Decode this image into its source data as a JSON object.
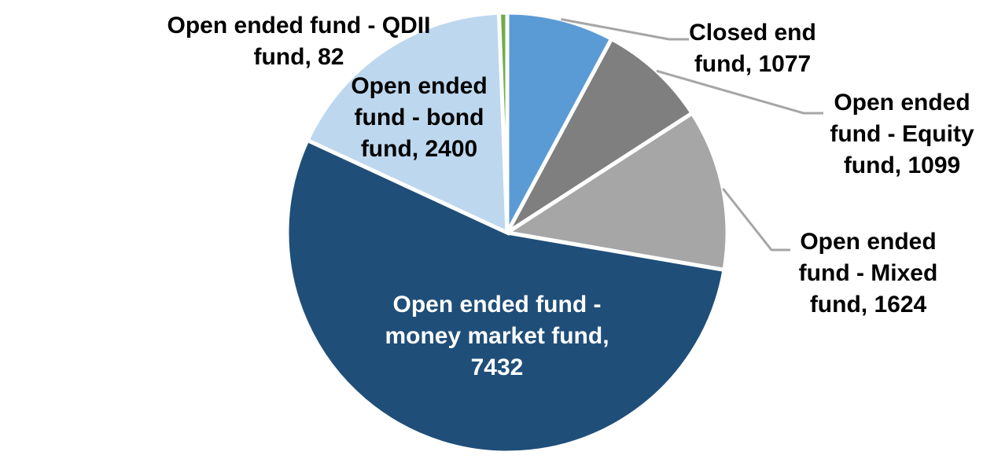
{
  "chart_data": {
    "type": "pie",
    "title": "",
    "legend_position": "none",
    "background": "#FFFFFF",
    "start_angle_deg": 0,
    "direction": "clockwise",
    "segments": [
      {
        "name": "closed-end-fund",
        "label": "Closed end fund",
        "value": 1077,
        "color": "#5B9BD5"
      },
      {
        "name": "equity-fund",
        "label": "Open ended fund - Equity fund",
        "value": 1099,
        "color": "#7F7F7F"
      },
      {
        "name": "mixed-fund",
        "label": "Open ended fund - Mixed fund",
        "value": 1624,
        "color": "#A6A6A6"
      },
      {
        "name": "money-market-fund",
        "label": "Open ended fund - money market fund",
        "value": 7432,
        "color": "#1F4E79"
      },
      {
        "name": "bond-fund",
        "label": "Open ended fund - bond fund",
        "value": 2400,
        "color": "#BDD7EE"
      },
      {
        "name": "qdii-fund",
        "label": "Open ended fund - QDII fund",
        "value": 82,
        "color": "#70AD47"
      }
    ]
  },
  "labels": {
    "qdii": "Open ended fund - QDII\nfund, 82",
    "bond": "Open ended\nfund - bond\nfund, 2400",
    "closed": "Closed end\nfund, 1077",
    "equity": "Open ended\nfund - Equity\nfund, 1099",
    "mixed": "Open ended\nfund - Mixed\nfund, 1624",
    "money": "Open ended fund -\nmoney market fund,\n7432"
  },
  "colors": {
    "leader_line": "#A6A6A6",
    "slice_border": "#FFFFFF",
    "outer_label_text": "#000000",
    "inner_label_text": "#FFFFFF"
  }
}
